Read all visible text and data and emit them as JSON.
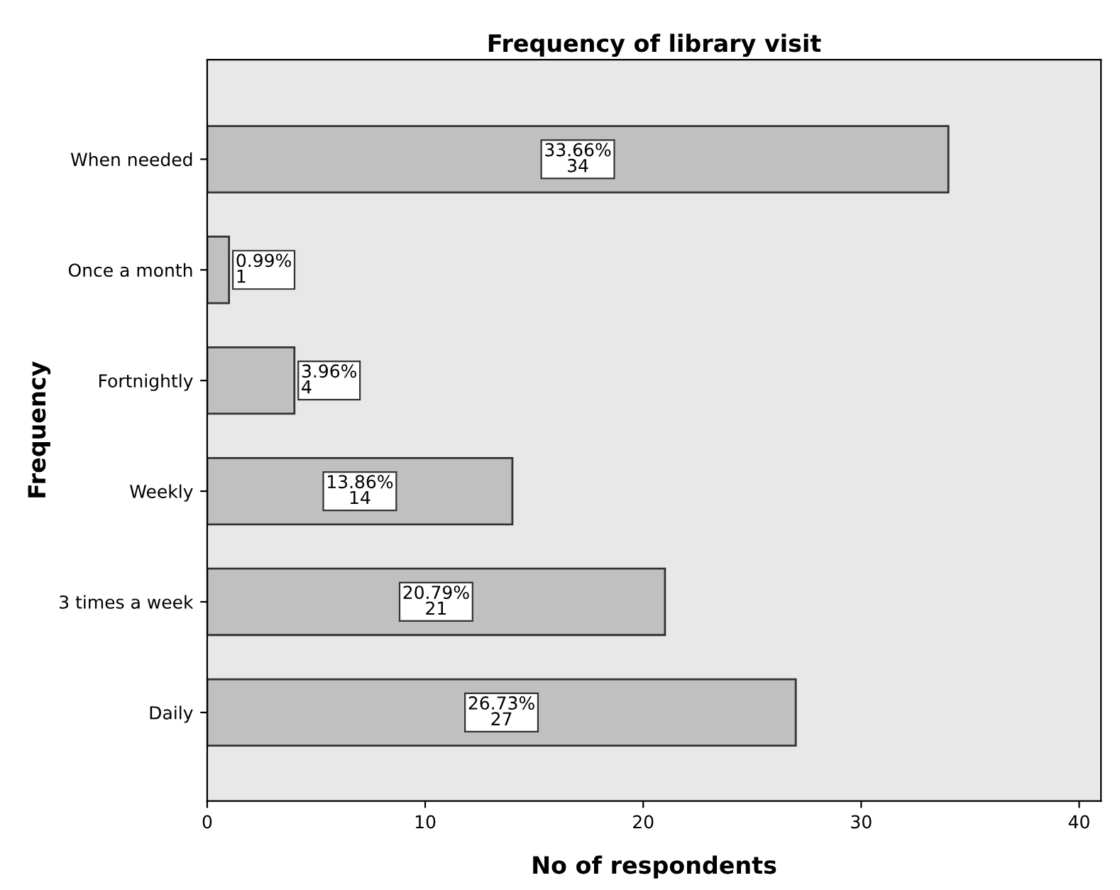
{
  "chart_data": {
    "type": "bar",
    "orientation": "horizontal",
    "title": "Frequency of library visit",
    "xlabel": "No of respondents",
    "ylabel": "Frequency",
    "categories": [
      "When needed",
      "Once a month",
      "Fortnightly",
      "Weekly",
      "3 times a week",
      "Daily"
    ],
    "values": [
      34,
      1,
      4,
      14,
      21,
      27
    ],
    "value_labels": [
      "33.66%\n34",
      "0.99%\n1",
      "3.96%\n4",
      "13.86%\n14",
      "20.79%\n21",
      "26.73%\n27"
    ],
    "color": "#c0c0c0",
    "xlim": [
      0,
      41
    ],
    "xticks": [
      0,
      10,
      20,
      30,
      40
    ],
    "grid": false
  }
}
